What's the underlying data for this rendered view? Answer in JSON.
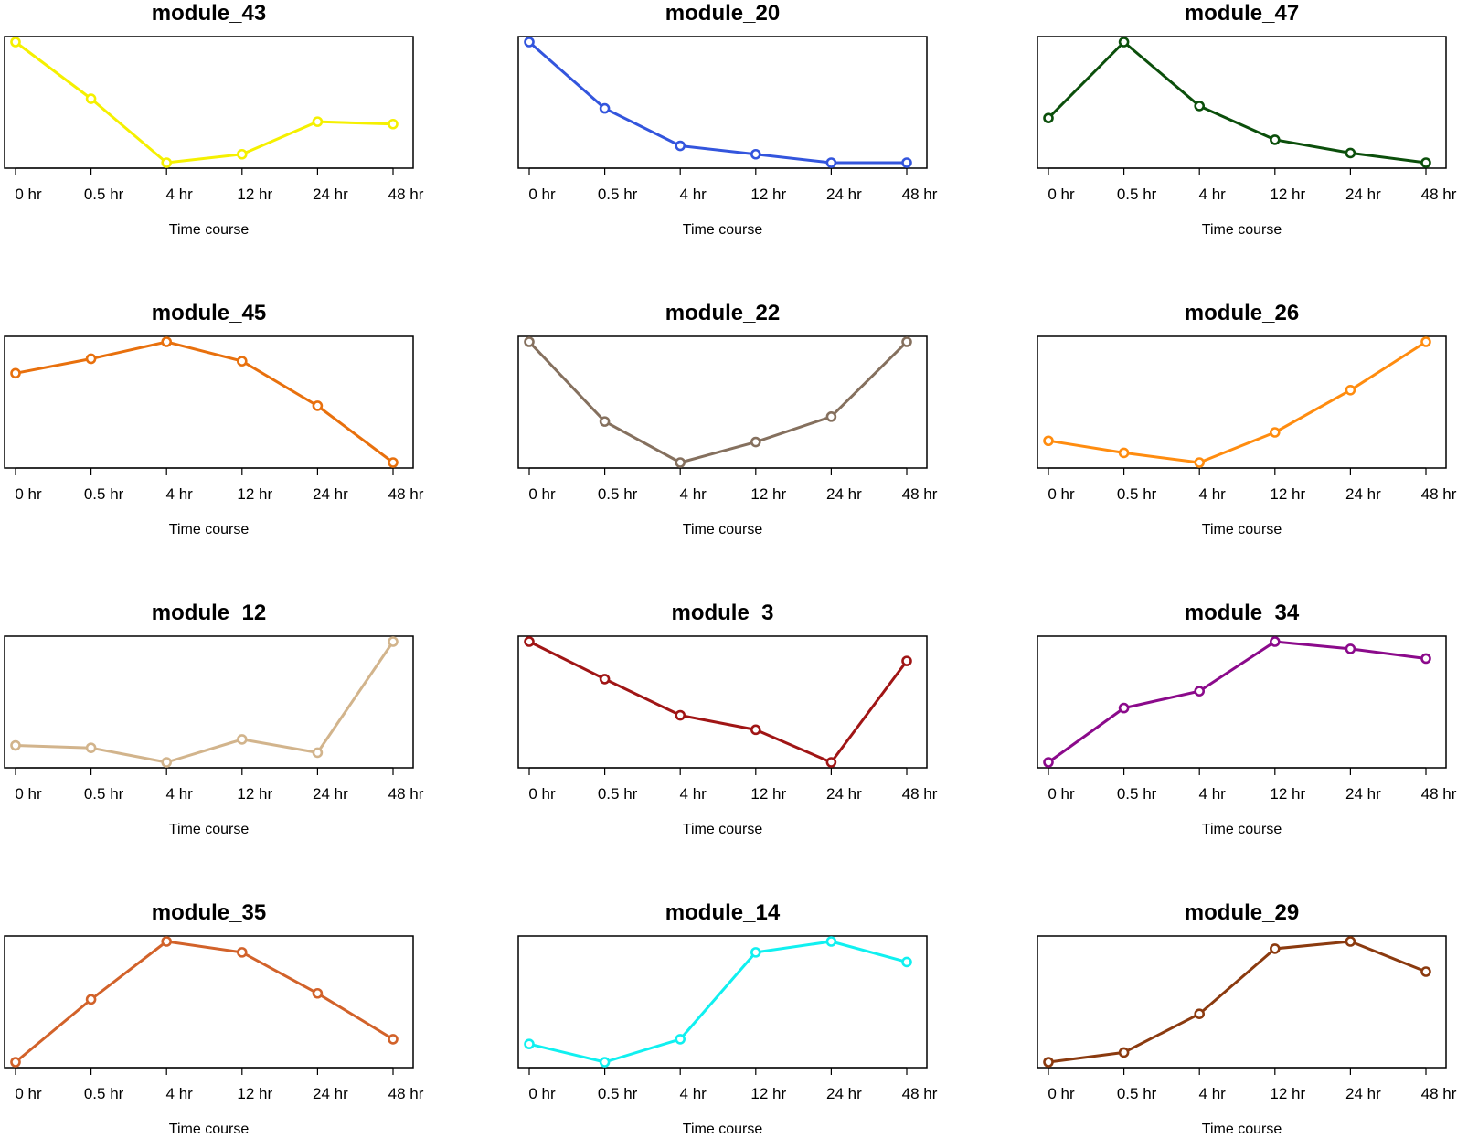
{
  "chart_data": [
    {
      "type": "line",
      "title": "module_43",
      "color": "#F5F000",
      "xlabel": "Time course",
      "ylabel": "",
      "categories": [
        "0 hr",
        "0.5 hr",
        "4 hr",
        "12 hr",
        "24 hr",
        "48 hr"
      ],
      "values": [
        1.0,
        0.53,
        0.0,
        0.07,
        0.34,
        0.32
      ],
      "ylim": [
        0,
        1
      ]
    },
    {
      "type": "line",
      "title": "module_20",
      "color": "#3355DD",
      "xlabel": "Time course",
      "ylabel": "",
      "categories": [
        "0 hr",
        "0.5 hr",
        "4 hr",
        "12 hr",
        "24 hr",
        "48 hr"
      ],
      "values": [
        1.0,
        0.45,
        0.14,
        0.07,
        0.0,
        0.0
      ],
      "ylim": [
        0,
        1
      ]
    },
    {
      "type": "line",
      "title": "module_47",
      "color": "#0B4F0B",
      "xlabel": "Time course",
      "ylabel": "",
      "categories": [
        "0 hr",
        "0.5 hr",
        "4 hr",
        "12 hr",
        "24 hr",
        "48 hr"
      ],
      "values": [
        0.37,
        1.0,
        0.47,
        0.19,
        0.08,
        0.0
      ],
      "ylim": [
        0,
        1
      ]
    },
    {
      "type": "line",
      "title": "module_45",
      "color": "#E8700D",
      "xlabel": "Time course",
      "ylabel": "",
      "categories": [
        "0 hr",
        "0.5 hr",
        "4 hr",
        "12 hr",
        "24 hr",
        "48 hr"
      ],
      "values": [
        0.74,
        0.86,
        1.0,
        0.84,
        0.47,
        0.0
      ],
      "ylim": [
        0,
        1
      ]
    },
    {
      "type": "line",
      "title": "module_22",
      "color": "#85705E",
      "xlabel": "Time course",
      "ylabel": "",
      "categories": [
        "0 hr",
        "0.5 hr",
        "4 hr",
        "12 hr",
        "24 hr",
        "48 hr"
      ],
      "values": [
        1.0,
        0.34,
        0.0,
        0.17,
        0.38,
        1.0
      ],
      "ylim": [
        0,
        1
      ]
    },
    {
      "type": "line",
      "title": "module_26",
      "color": "#FF8C0F",
      "xlabel": "Time course",
      "ylabel": "",
      "categories": [
        "0 hr",
        "0.5 hr",
        "4 hr",
        "12 hr",
        "24 hr",
        "48 hr"
      ],
      "values": [
        0.18,
        0.08,
        0.0,
        0.25,
        0.6,
        1.0
      ],
      "ylim": [
        0,
        1
      ]
    },
    {
      "type": "line",
      "title": "module_12",
      "color": "#D2B48C",
      "xlabel": "Time course",
      "ylabel": "",
      "categories": [
        "0 hr",
        "0.5 hr",
        "4 hr",
        "12 hr",
        "24 hr",
        "48 hr"
      ],
      "values": [
        0.14,
        0.12,
        0.0,
        0.19,
        0.08,
        1.0
      ],
      "ylim": [
        0,
        1
      ]
    },
    {
      "type": "line",
      "title": "module_3",
      "color": "#A01515",
      "xlabel": "Time course",
      "ylabel": "",
      "categories": [
        "0 hr",
        "0.5 hr",
        "4 hr",
        "12 hr",
        "24 hr",
        "48 hr"
      ],
      "values": [
        1.0,
        0.69,
        0.39,
        0.27,
        0.0,
        0.84
      ],
      "ylim": [
        0,
        1
      ]
    },
    {
      "type": "line",
      "title": "module_34",
      "color": "#8B0A8B",
      "xlabel": "Time course",
      "ylabel": "",
      "categories": [
        "0 hr",
        "0.5 hr",
        "4 hr",
        "12 hr",
        "24 hr",
        "48 hr"
      ],
      "values": [
        0.0,
        0.45,
        0.59,
        1.0,
        0.94,
        0.86
      ],
      "ylim": [
        0,
        1
      ]
    },
    {
      "type": "line",
      "title": "module_35",
      "color": "#D2622A",
      "xlabel": "Time course",
      "ylabel": "",
      "categories": [
        "0 hr",
        "0.5 hr",
        "4 hr",
        "12 hr",
        "24 hr",
        "48 hr"
      ],
      "values": [
        0.0,
        0.52,
        1.0,
        0.91,
        0.57,
        0.19
      ],
      "ylim": [
        0,
        1
      ]
    },
    {
      "type": "line",
      "title": "module_14",
      "color": "#10F0F0",
      "xlabel": "Time course",
      "ylabel": "",
      "categories": [
        "0 hr",
        "0.5 hr",
        "4 hr",
        "12 hr",
        "24 hr",
        "48 hr"
      ],
      "values": [
        0.15,
        0.0,
        0.19,
        0.91,
        1.0,
        0.83
      ],
      "ylim": [
        0,
        1
      ]
    },
    {
      "type": "line",
      "title": "module_29",
      "color": "#8B3A0F",
      "xlabel": "Time course",
      "ylabel": "",
      "categories": [
        "0 hr",
        "0.5 hr",
        "4 hr",
        "12 hr",
        "24 hr",
        "48 hr"
      ],
      "values": [
        0.0,
        0.08,
        0.4,
        0.94,
        1.0,
        0.75
      ],
      "ylim": [
        0,
        1
      ]
    }
  ]
}
